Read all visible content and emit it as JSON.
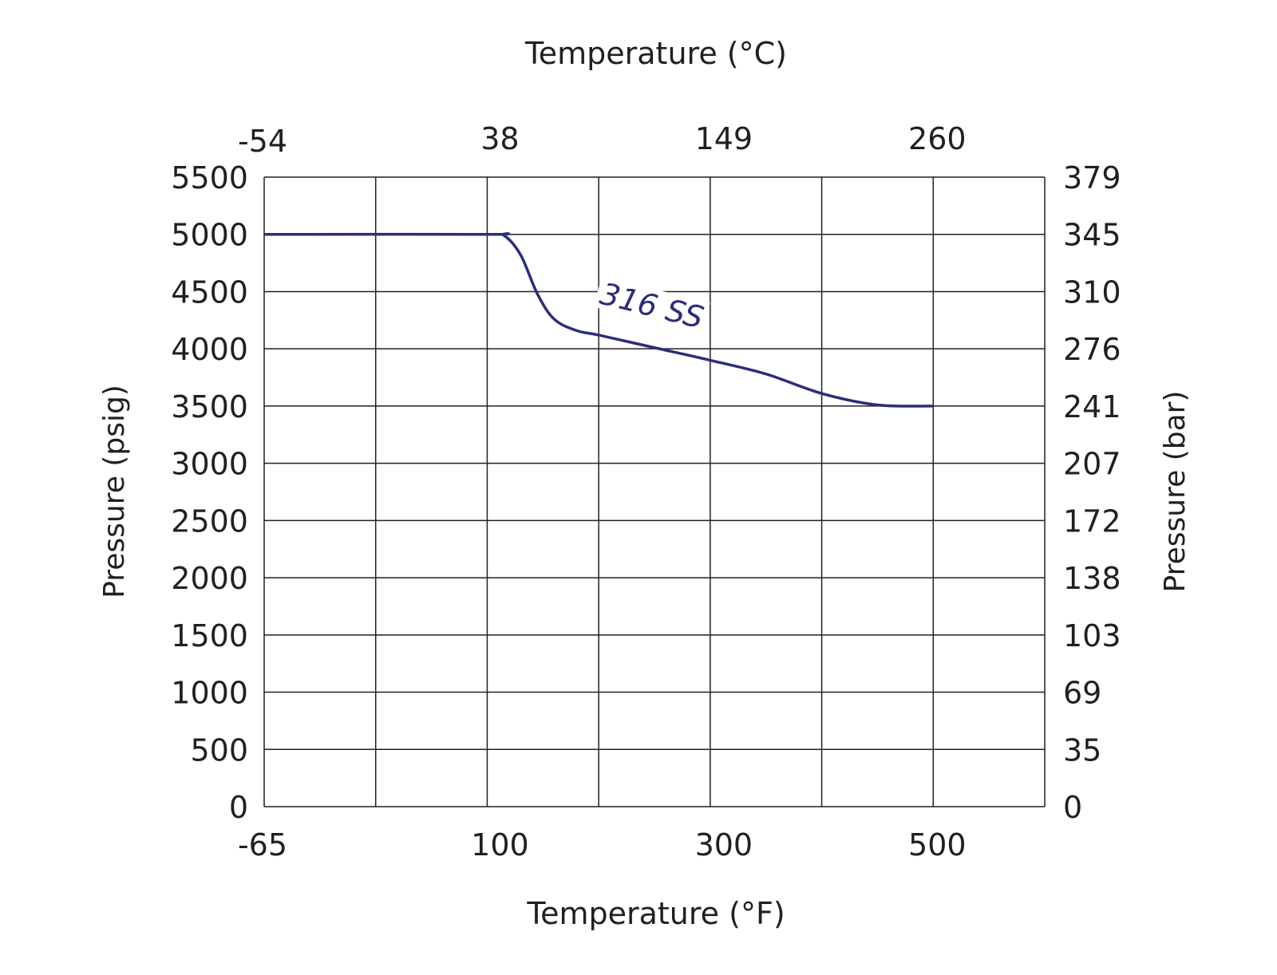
{
  "chart_data": {
    "type": "line",
    "title_top": "Temperature (°C)",
    "xlabel": "Temperature (°F)",
    "ylabel": "Pressure (psig)",
    "ylabel_right": "Pressure (bar)",
    "x_ticks": [
      -65,
      100,
      300,
      500
    ],
    "x_top_ticks": [
      "-54",
      "38",
      "149",
      "260"
    ],
    "x_grid_values": [
      -65,
      17.5,
      100,
      200,
      300,
      400,
      500,
      600
    ],
    "y_ticks": [
      0,
      500,
      1000,
      1500,
      2000,
      2500,
      3000,
      3500,
      4000,
      4500,
      5000,
      5500
    ],
    "y_right_ticks": [
      "0",
      "35",
      "69",
      "103",
      "138",
      "172",
      "207",
      "241",
      "276",
      "310",
      "345",
      "379"
    ],
    "ylim": [
      0,
      5500
    ],
    "xlim": [
      -65,
      600
    ],
    "grid": true,
    "series": [
      {
        "name": "316 SS",
        "color": "#2b2d7a",
        "x": [
          -65,
          100,
          115,
          130,
          145,
          160,
          180,
          200,
          250,
          300,
          350,
          400,
          450,
          500
        ],
        "y": [
          5000,
          5000,
          4990,
          4820,
          4480,
          4260,
          4160,
          4120,
          4010,
          3900,
          3780,
          3610,
          3510,
          3500
        ]
      }
    ]
  }
}
